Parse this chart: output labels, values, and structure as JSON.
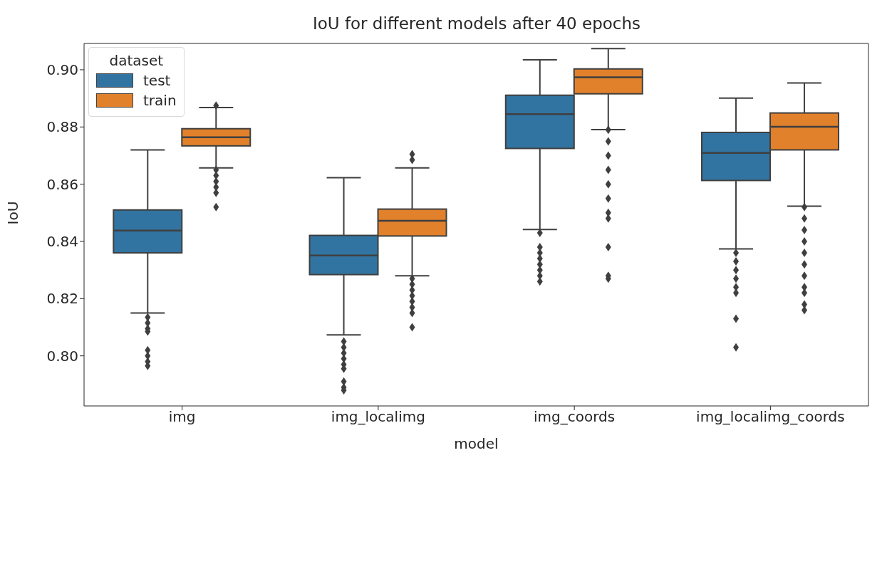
{
  "chart_data": {
    "type": "box",
    "title": "IoU for different models after 40 epochs",
    "xlabel": "model",
    "ylabel": "IoU",
    "legend_title": "dataset",
    "legend": "top left",
    "categories": [
      "img",
      "img_localimg",
      "img_coords",
      "img_localimg_coords"
    ],
    "ylim": [
      0.7825,
      0.9092
    ],
    "yticks": [
      {
        "value": 0.8,
        "label": "0.80"
      },
      {
        "value": 0.82,
        "label": "0.82"
      },
      {
        "value": 0.84,
        "label": "0.84"
      },
      {
        "value": 0.86,
        "label": "0.86"
      },
      {
        "value": 0.88,
        "label": "0.88"
      },
      {
        "value": 0.9,
        "label": "0.90"
      }
    ],
    "series": [
      {
        "name": "test",
        "color": "#3274a1",
        "boxes": [
          {
            "low": 0.815,
            "q1": 0.836,
            "median": 0.8438,
            "q3": 0.851,
            "high": 0.872,
            "outliers": [
              0.8135,
              0.8115,
              0.8095,
              0.8085,
              0.802,
              0.8,
              0.798,
              0.7965
            ]
          },
          {
            "low": 0.8073,
            "q1": 0.8284,
            "median": 0.8351,
            "q3": 0.8421,
            "high": 0.8623,
            "outliers": [
              0.805,
              0.803,
              0.801,
              0.799,
              0.797,
              0.7955,
              0.791,
              0.789,
              0.788
            ]
          },
          {
            "low": 0.8442,
            "q1": 0.8725,
            "median": 0.8845,
            "q3": 0.8911,
            "high": 0.9035,
            "outliers": [
              0.843,
              0.838,
              0.836,
              0.834,
              0.832,
              0.83,
              0.828,
              0.826
            ]
          },
          {
            "low": 0.8374,
            "q1": 0.8613,
            "median": 0.8709,
            "q3": 0.8781,
            "high": 0.8901,
            "outliers": [
              0.836,
              0.833,
              0.83,
              0.827,
              0.824,
              0.822,
              0.813,
              0.803
            ]
          }
        ]
      },
      {
        "name": "train",
        "color": "#e1812c",
        "boxes": [
          {
            "low": 0.8657,
            "q1": 0.8734,
            "median": 0.8764,
            "q3": 0.8794,
            "high": 0.8868,
            "outliers": [
              0.8875,
              0.865,
              0.863,
              0.861,
              0.859,
              0.857,
              0.852
            ]
          },
          {
            "low": 0.828,
            "q1": 0.8419,
            "median": 0.8472,
            "q3": 0.8513,
            "high": 0.8657,
            "outliers": [
              0.8705,
              0.8685,
              0.827,
              0.825,
              0.823,
              0.821,
              0.819,
              0.817,
              0.815,
              0.81
            ]
          },
          {
            "low": 0.8791,
            "q1": 0.8916,
            "median": 0.8974,
            "q3": 0.9003,
            "high": 0.9074,
            "outliers": [
              0.879,
              0.875,
              0.87,
              0.865,
              0.86,
              0.855,
              0.85,
              0.848,
              0.838,
              0.828,
              0.827
            ]
          },
          {
            "low": 0.8523,
            "q1": 0.872,
            "median": 0.8801,
            "q3": 0.8849,
            "high": 0.8954,
            "outliers": [
              0.852,
              0.848,
              0.844,
              0.84,
              0.836,
              0.832,
              0.828,
              0.824,
              0.822,
              0.818,
              0.816
            ]
          }
        ]
      }
    ]
  }
}
